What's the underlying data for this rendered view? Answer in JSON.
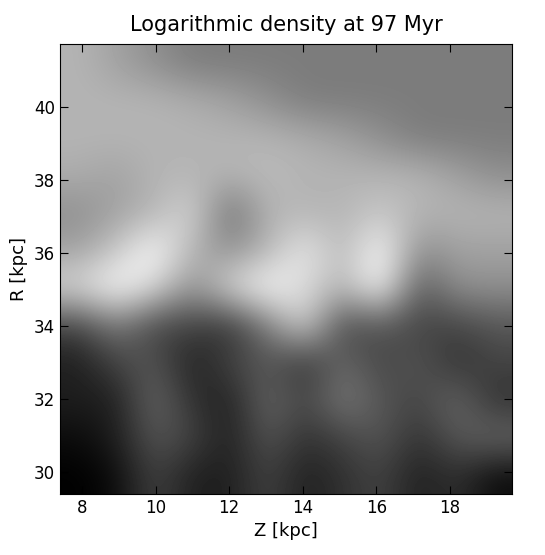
{
  "chart_data": {
    "type": "heatmap",
    "title": "Logarithmic density at 97 Myr",
    "x_label": "Z [kpc]",
    "y_label": "R [kpc]",
    "xlim": [
      7.4,
      19.7
    ],
    "ylim": [
      29.4,
      41.7
    ],
    "xticks": [
      8,
      10,
      12,
      14,
      16,
      18
    ],
    "yticks": [
      30,
      32,
      34,
      36,
      38,
      40
    ],
    "color": "gray",
    "cells": [
      [
        0.6,
        0.55,
        0.5,
        0.45,
        0.45,
        0.45,
        0.45,
        0.45,
        0.45,
        0.45,
        0.45,
        0.45
      ],
      [
        0.6,
        0.6,
        0.6,
        0.58,
        0.55,
        0.5,
        0.45,
        0.45,
        0.45,
        0.45,
        0.45,
        0.45
      ],
      [
        0.6,
        0.6,
        0.6,
        0.6,
        0.6,
        0.6,
        0.58,
        0.55,
        0.5,
        0.45,
        0.45,
        0.45
      ],
      [
        0.58,
        0.55,
        0.6,
        0.6,
        0.6,
        0.62,
        0.6,
        0.6,
        0.6,
        0.6,
        0.55,
        0.5
      ],
      [
        0.5,
        0.55,
        0.6,
        0.7,
        0.4,
        0.6,
        0.6,
        0.6,
        0.65,
        0.6,
        0.6,
        0.6
      ],
      [
        0.55,
        0.65,
        0.8,
        0.6,
        0.5,
        0.6,
        0.75,
        0.6,
        0.8,
        0.5,
        0.55,
        0.55
      ],
      [
        0.7,
        0.8,
        0.7,
        0.5,
        0.7,
        0.8,
        0.7,
        0.6,
        0.8,
        0.35,
        0.5,
        0.5
      ],
      [
        0.3,
        0.45,
        0.3,
        0.3,
        0.25,
        0.45,
        0.7,
        0.3,
        0.35,
        0.3,
        0.3,
        0.35
      ],
      [
        0.2,
        0.3,
        0.35,
        0.2,
        0.3,
        0.35,
        0.25,
        0.4,
        0.3,
        0.35,
        0.25,
        0.3
      ],
      [
        0.2,
        0.2,
        0.4,
        0.25,
        0.2,
        0.4,
        0.3,
        0.45,
        0.35,
        0.3,
        0.4,
        0.25
      ],
      [
        0.15,
        0.2,
        0.35,
        0.3,
        0.2,
        0.35,
        0.25,
        0.3,
        0.35,
        0.25,
        0.35,
        0.4
      ],
      [
        0.12,
        0.15,
        0.3,
        0.2,
        0.2,
        0.3,
        0.2,
        0.25,
        0.3,
        0.2,
        0.25,
        0.15
      ]
    ]
  }
}
